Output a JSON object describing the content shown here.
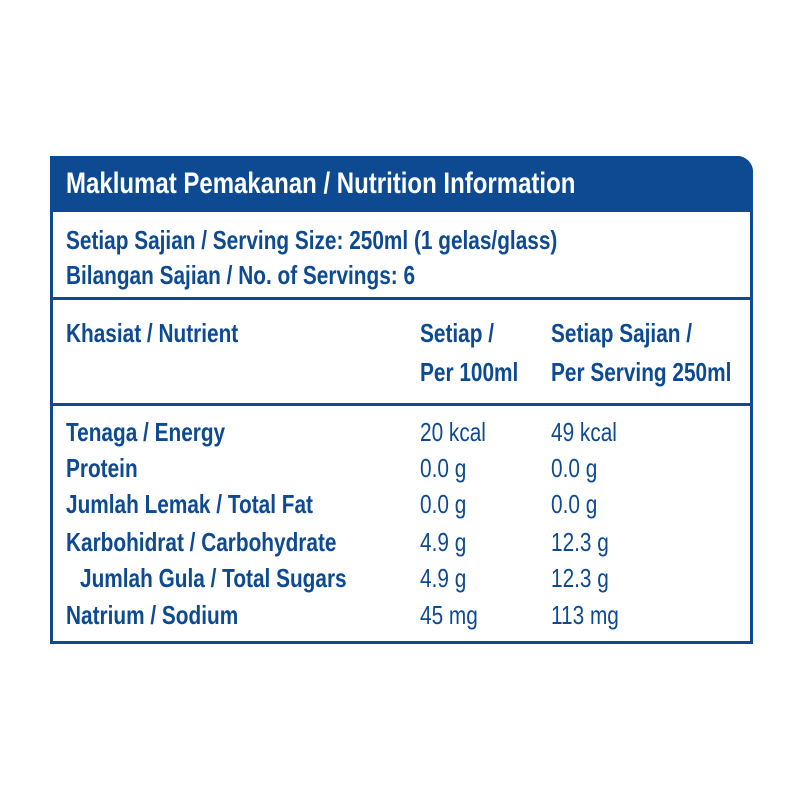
{
  "header": {
    "title": "Maklumat Pemakanan / Nutrition Information"
  },
  "serving": {
    "size": "Setiap Sajian / Serving Size: 250ml (1 gelas/glass)",
    "count": "Bilangan Sajian / No. of Servings: 6"
  },
  "table": {
    "columns": [
      [
        "Khasiat / Nutrient"
      ],
      [
        "Setiap /",
        "Per 100ml"
      ],
      [
        "Setiap Sajian /",
        "Per Serving 250ml"
      ]
    ],
    "rows": [
      [
        "Tenaga / Energy",
        "20 kcal",
        "49 kcal"
      ],
      [
        "Protein",
        "0.0 g",
        "0.0 g"
      ],
      [
        "Jumlah Lemak / Total Fat",
        "0.0 g",
        "0.0 g"
      ],
      [
        "Karbohidrat / Carbohydrate",
        "4.9 g",
        "12.3 g"
      ],
      [
        "Jumlah Gula / Total Sugars",
        "4.9 g",
        "12.3 g"
      ],
      [
        "Natrium / Sodium",
        "45 mg",
        "113 mg"
      ]
    ]
  }
}
